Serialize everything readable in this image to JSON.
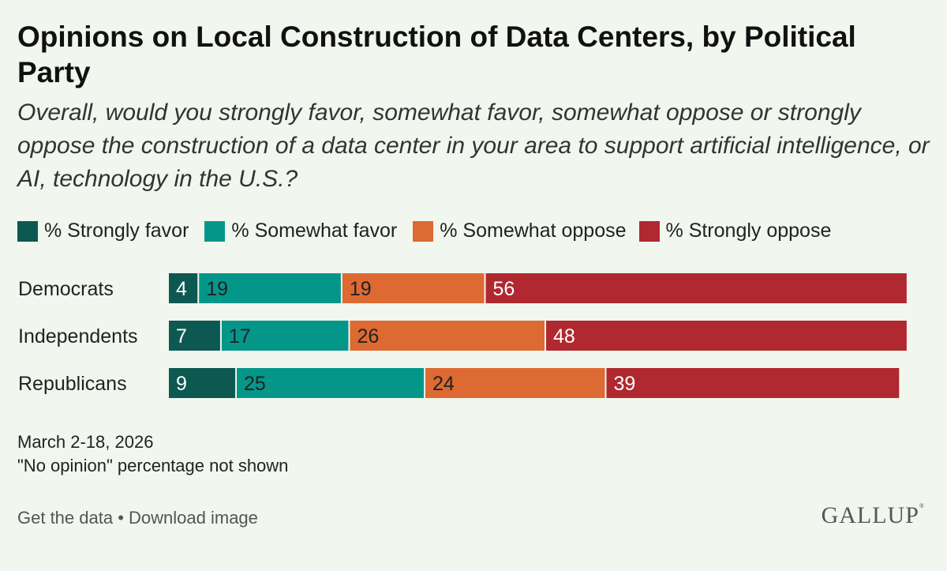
{
  "title": "Opinions on Local Construction of Data Centers, by Political Party",
  "subtitle": "Overall, would you strongly favor, somewhat favor, somewhat oppose or strongly oppose the construction of a data center in your area to support artificial intelligence, or AI, technology in the U.S.?",
  "colors": {
    "strongly_favor": "#0d5951",
    "somewhat_favor": "#05968a",
    "somewhat_oppose": "#dc6a32",
    "strongly_oppose": "#b02930",
    "label_dark": "#222222",
    "label_light": "#ffffff"
  },
  "chart_data": {
    "type": "bar",
    "orientation": "horizontal",
    "stacked": true,
    "categories": [
      "Democrats",
      "Independents",
      "Republicans"
    ],
    "series": [
      {
        "name": "% Strongly favor",
        "values": [
          4,
          7,
          9
        ]
      },
      {
        "name": "% Somewhat favor",
        "values": [
          19,
          17,
          25
        ]
      },
      {
        "name": "% Somewhat oppose",
        "values": [
          19,
          26,
          24
        ]
      },
      {
        "name": "% Strongly oppose",
        "values": [
          56,
          48,
          39
        ]
      }
    ],
    "xlim": [
      0,
      100
    ],
    "legend": "top-left"
  },
  "notes": {
    "date": "March 2-18, 2026",
    "footnote": "\"No opinion\" percentage not shown"
  },
  "footer": {
    "get_data": "Get the data",
    "separator": " • ",
    "download": "Download image",
    "logo_text": "GALLUP",
    "logo_mark": "®"
  }
}
